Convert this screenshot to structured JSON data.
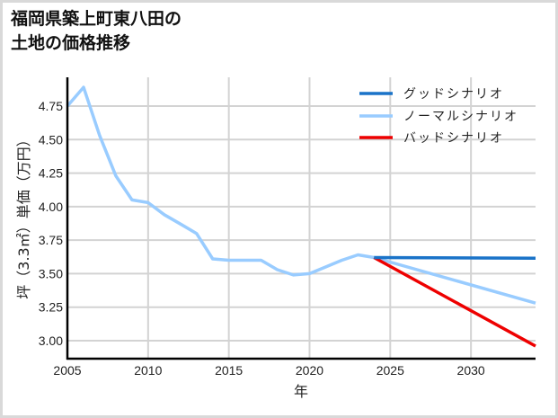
{
  "title": {
    "line1": "福岡県築上町東八田の",
    "line2": "土地の価格推移"
  },
  "chart_data": {
    "type": "line",
    "title": "福岡県築上町東八田の土地の価格推移",
    "xlabel": "年",
    "ylabel": "坪（3.3㎡）単価（万円）",
    "xlim": [
      2005,
      2034
    ],
    "ylim": [
      2.87,
      4.96
    ],
    "x_ticks": [
      2005,
      2010,
      2015,
      2020,
      2025,
      2030
    ],
    "y_ticks": [
      3.0,
      3.25,
      3.5,
      3.75,
      4.0,
      4.25,
      4.5,
      4.75
    ],
    "y_tick_labels": [
      "3.00",
      "3.25",
      "3.50",
      "3.75",
      "4.00",
      "4.25",
      "4.50",
      "4.75"
    ],
    "grid": true,
    "legend_position": "upper right",
    "series": [
      {
        "name": "グッドシナリオ",
        "color": "#1a73c8",
        "x": [
          2024,
          2034
        ],
        "values": [
          3.62,
          3.615
        ]
      },
      {
        "name": "ノーマルシナリオ",
        "color": "#99ccff",
        "x": [
          2005,
          2006,
          2007,
          2008,
          2009,
          2010,
          2011,
          2012,
          2013,
          2014,
          2015,
          2016,
          2017,
          2018,
          2019,
          2020,
          2021,
          2022,
          2023,
          2024,
          2034
        ],
        "values": [
          4.75,
          4.89,
          4.53,
          4.23,
          4.05,
          4.03,
          3.94,
          3.87,
          3.8,
          3.61,
          3.6,
          3.6,
          3.6,
          3.53,
          3.49,
          3.5,
          3.55,
          3.6,
          3.64,
          3.62,
          3.28
        ]
      },
      {
        "name": "バッドシナリオ",
        "color": "#ee0000",
        "x": [
          2024,
          2034
        ],
        "values": [
          3.62,
          2.96
        ]
      }
    ]
  }
}
